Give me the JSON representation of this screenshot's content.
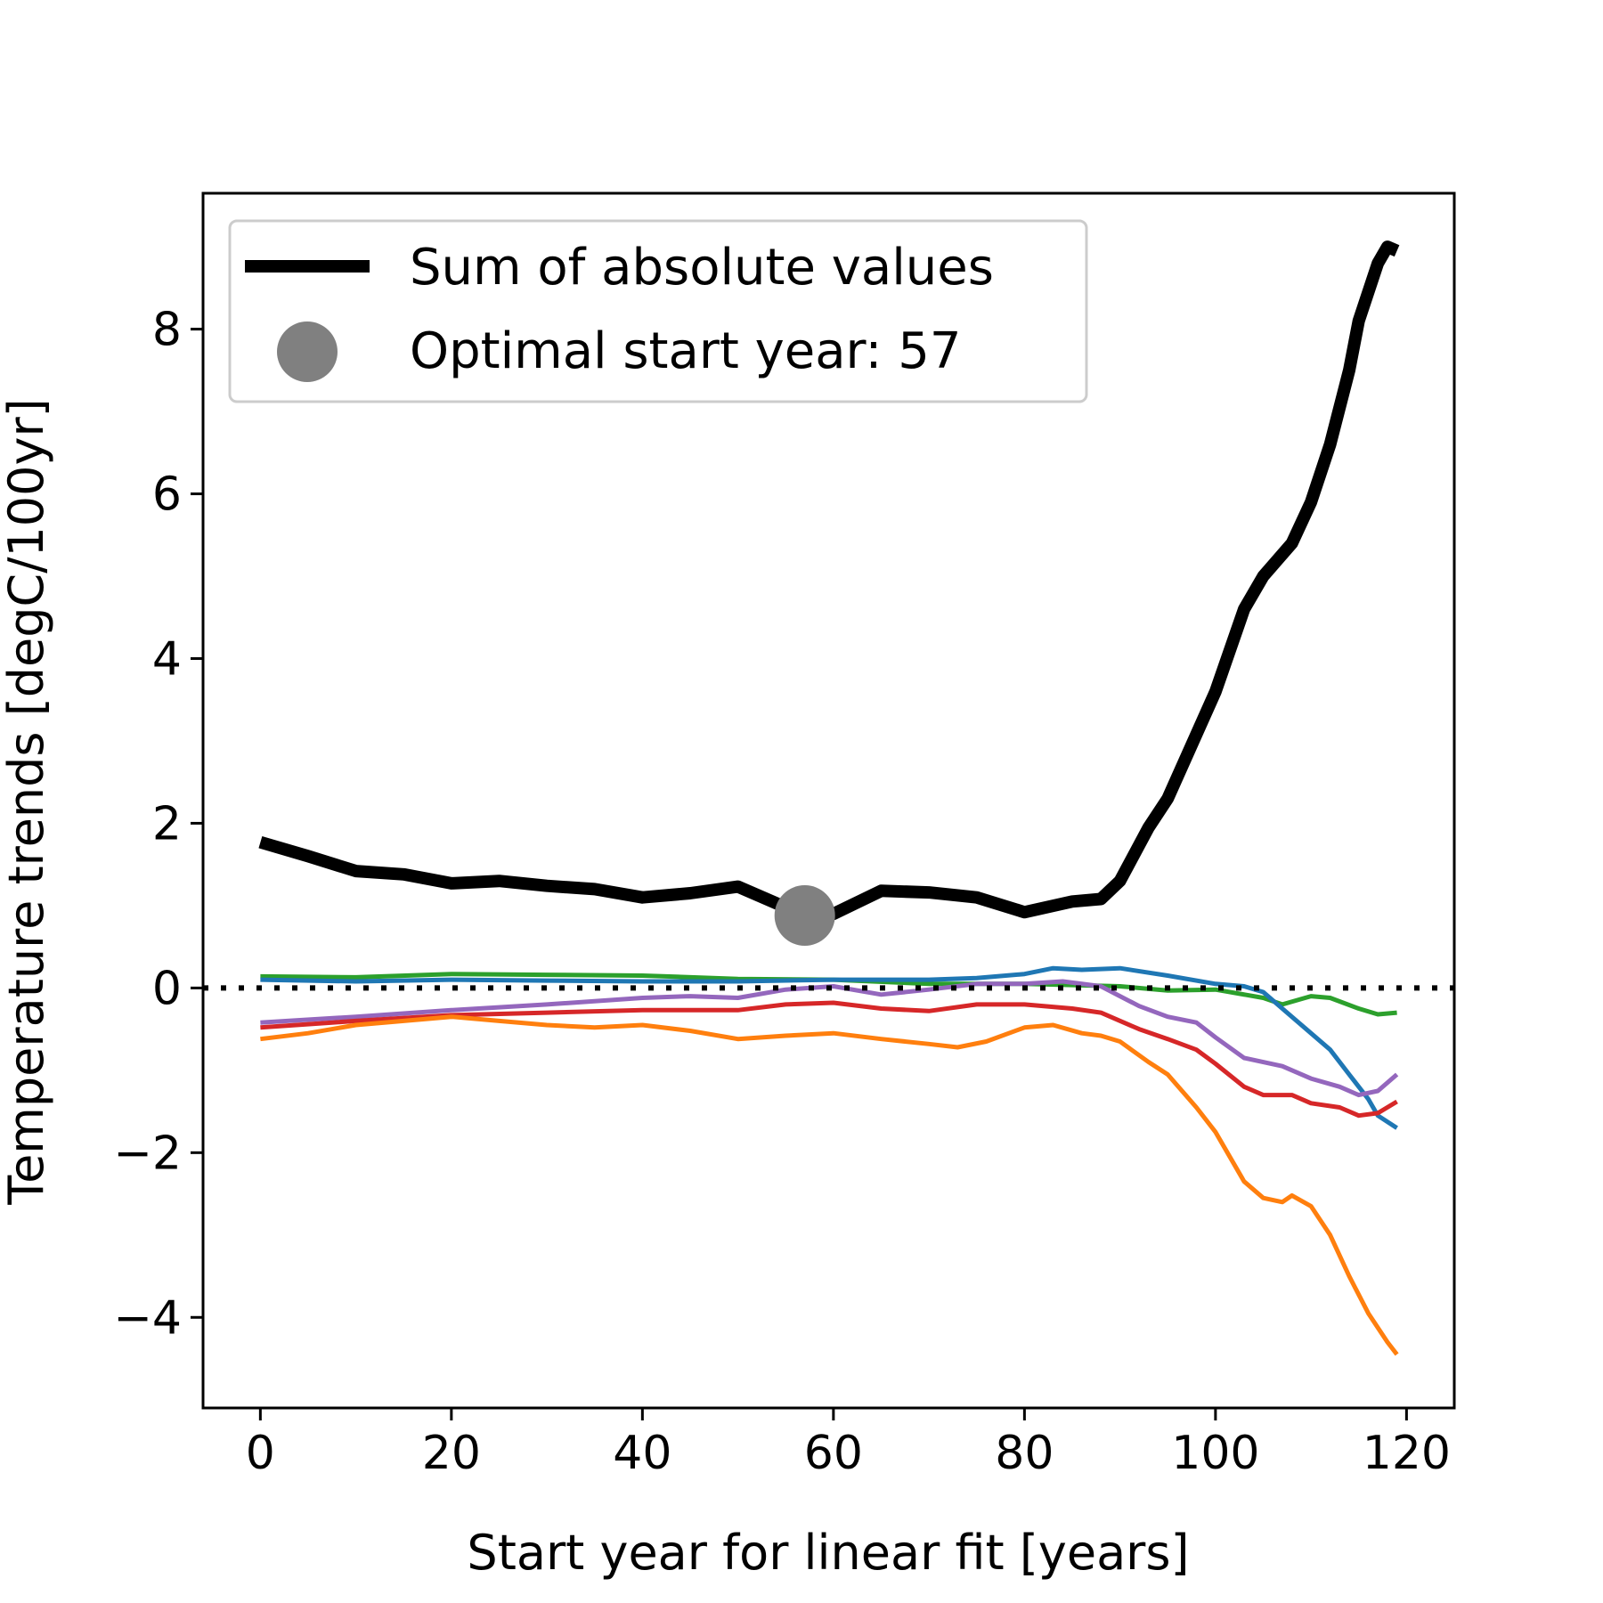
{
  "chart_data": {
    "type": "line",
    "title": "",
    "xlabel": "Start year for linear fit [years]",
    "ylabel": "Temperature trends [degC/100yr]",
    "xlim": [
      -6,
      125
    ],
    "ylim": [
      -5.1,
      9.65
    ],
    "xticks": [
      0,
      20,
      40,
      60,
      80,
      100,
      120
    ],
    "yticks": [
      -4,
      -2,
      0,
      2,
      4,
      6,
      8
    ],
    "tick_labels_x": [
      "0",
      "20",
      "40",
      "60",
      "80",
      "100",
      "120"
    ],
    "tick_labels_y": [
      "−4",
      "−2",
      "0",
      "2",
      "4",
      "6",
      "8"
    ],
    "grid": false,
    "legend_position": "top-left",
    "zero_line": {
      "y": 0,
      "style": "dotted",
      "color": "#000000"
    },
    "colors": {
      "sum": "#000000",
      "blue": "#1f77b4",
      "orange": "#ff7f0e",
      "green": "#2ca02c",
      "red": "#d62728",
      "purple": "#9467bd",
      "marker": "#808080"
    },
    "series": [
      {
        "key": "sum",
        "name": "Sum of absolute values",
        "color": "#000000",
        "points": [
          [
            0,
            1.77
          ],
          [
            5,
            1.6
          ],
          [
            10,
            1.42
          ],
          [
            15,
            1.38
          ],
          [
            20,
            1.27
          ],
          [
            25,
            1.3
          ],
          [
            30,
            1.24
          ],
          [
            35,
            1.2
          ],
          [
            40,
            1.1
          ],
          [
            45,
            1.15
          ],
          [
            50,
            1.23
          ],
          [
            55,
            0.98
          ],
          [
            57,
            0.88
          ],
          [
            60,
            0.9
          ],
          [
            65,
            1.18
          ],
          [
            70,
            1.16
          ],
          [
            75,
            1.1
          ],
          [
            80,
            0.92
          ],
          [
            85,
            1.05
          ],
          [
            88,
            1.08
          ],
          [
            90,
            1.3
          ],
          [
            93,
            1.95
          ],
          [
            95,
            2.3
          ],
          [
            100,
            3.6
          ],
          [
            103,
            4.6
          ],
          [
            105,
            5.0
          ],
          [
            108,
            5.4
          ],
          [
            110,
            5.9
          ],
          [
            112,
            6.6
          ],
          [
            114,
            7.5
          ],
          [
            115,
            8.1
          ],
          [
            117,
            8.8
          ],
          [
            118,
            9.0
          ],
          [
            119,
            8.95
          ]
        ]
      },
      {
        "key": "green",
        "name": "",
        "color": "#2ca02c",
        "points": [
          [
            0,
            0.14
          ],
          [
            10,
            0.13
          ],
          [
            20,
            0.17
          ],
          [
            30,
            0.16
          ],
          [
            40,
            0.15
          ],
          [
            50,
            0.11
          ],
          [
            60,
            0.1
          ],
          [
            70,
            0.05
          ],
          [
            80,
            0.05
          ],
          [
            90,
            0.02
          ],
          [
            95,
            -0.03
          ],
          [
            100,
            -0.02
          ],
          [
            105,
            -0.12
          ],
          [
            107,
            -0.2
          ],
          [
            110,
            -0.1
          ],
          [
            112,
            -0.12
          ],
          [
            115,
            -0.25
          ],
          [
            117,
            -0.32
          ],
          [
            119,
            -0.3
          ]
        ]
      },
      {
        "key": "blue",
        "name": "",
        "color": "#1f77b4",
        "points": [
          [
            0,
            0.1
          ],
          [
            10,
            0.08
          ],
          [
            20,
            0.1
          ],
          [
            30,
            0.09
          ],
          [
            40,
            0.08
          ],
          [
            50,
            0.08
          ],
          [
            60,
            0.1
          ],
          [
            70,
            0.1
          ],
          [
            75,
            0.12
          ],
          [
            80,
            0.17
          ],
          [
            83,
            0.24
          ],
          [
            86,
            0.22
          ],
          [
            90,
            0.24
          ],
          [
            95,
            0.15
          ],
          [
            100,
            0.05
          ],
          [
            103,
            0.02
          ],
          [
            105,
            -0.05
          ],
          [
            107,
            -0.25
          ],
          [
            110,
            -0.55
          ],
          [
            112,
            -0.75
          ],
          [
            114,
            -1.05
          ],
          [
            116,
            -1.35
          ],
          [
            117,
            -1.55
          ],
          [
            119,
            -1.7
          ]
        ]
      },
      {
        "key": "purple",
        "name": "",
        "color": "#9467bd",
        "points": [
          [
            0,
            -0.42
          ],
          [
            10,
            -0.35
          ],
          [
            20,
            -0.27
          ],
          [
            30,
            -0.2
          ],
          [
            40,
            -0.12
          ],
          [
            45,
            -0.1
          ],
          [
            50,
            -0.12
          ],
          [
            55,
            -0.02
          ],
          [
            60,
            0.02
          ],
          [
            65,
            -0.08
          ],
          [
            70,
            -0.02
          ],
          [
            75,
            0.05
          ],
          [
            80,
            0.05
          ],
          [
            84,
            0.08
          ],
          [
            88,
            0.02
          ],
          [
            92,
            -0.22
          ],
          [
            95,
            -0.35
          ],
          [
            98,
            -0.42
          ],
          [
            100,
            -0.6
          ],
          [
            103,
            -0.85
          ],
          [
            107,
            -0.95
          ],
          [
            110,
            -1.1
          ],
          [
            113,
            -1.2
          ],
          [
            115,
            -1.3
          ],
          [
            117,
            -1.25
          ],
          [
            119,
            -1.05
          ]
        ]
      },
      {
        "key": "red",
        "name": "",
        "color": "#d62728",
        "points": [
          [
            0,
            -0.48
          ],
          [
            10,
            -0.4
          ],
          [
            20,
            -0.33
          ],
          [
            30,
            -0.3
          ],
          [
            40,
            -0.27
          ],
          [
            50,
            -0.27
          ],
          [
            55,
            -0.2
          ],
          [
            60,
            -0.18
          ],
          [
            65,
            -0.25
          ],
          [
            70,
            -0.28
          ],
          [
            75,
            -0.2
          ],
          [
            80,
            -0.2
          ],
          [
            85,
            -0.25
          ],
          [
            88,
            -0.3
          ],
          [
            92,
            -0.5
          ],
          [
            95,
            -0.62
          ],
          [
            98,
            -0.75
          ],
          [
            100,
            -0.92
          ],
          [
            103,
            -1.2
          ],
          [
            105,
            -1.3
          ],
          [
            108,
            -1.3
          ],
          [
            110,
            -1.4
          ],
          [
            113,
            -1.45
          ],
          [
            115,
            -1.55
          ],
          [
            117,
            -1.52
          ],
          [
            119,
            -1.38
          ]
        ]
      },
      {
        "key": "orange",
        "name": "",
        "color": "#ff7f0e",
        "points": [
          [
            0,
            -0.62
          ],
          [
            5,
            -0.55
          ],
          [
            10,
            -0.45
          ],
          [
            15,
            -0.4
          ],
          [
            20,
            -0.35
          ],
          [
            25,
            -0.4
          ],
          [
            30,
            -0.45
          ],
          [
            35,
            -0.48
          ],
          [
            40,
            -0.45
          ],
          [
            45,
            -0.52
          ],
          [
            50,
            -0.62
          ],
          [
            55,
            -0.58
          ],
          [
            60,
            -0.55
          ],
          [
            65,
            -0.62
          ],
          [
            70,
            -0.68
          ],
          [
            73,
            -0.72
          ],
          [
            76,
            -0.65
          ],
          [
            80,
            -0.48
          ],
          [
            83,
            -0.45
          ],
          [
            86,
            -0.55
          ],
          [
            88,
            -0.58
          ],
          [
            90,
            -0.65
          ],
          [
            93,
            -0.9
          ],
          [
            95,
            -1.05
          ],
          [
            98,
            -1.45
          ],
          [
            100,
            -1.75
          ],
          [
            103,
            -2.35
          ],
          [
            105,
            -2.55
          ],
          [
            107,
            -2.6
          ],
          [
            108,
            -2.52
          ],
          [
            110,
            -2.65
          ],
          [
            112,
            -3.0
          ],
          [
            114,
            -3.5
          ],
          [
            116,
            -3.95
          ],
          [
            118,
            -4.3
          ],
          [
            119,
            -4.45
          ]
        ]
      }
    ],
    "optimal_marker": {
      "label": "Optimal start year: 57",
      "x": 57,
      "y": 0.88,
      "color": "#808080"
    }
  }
}
